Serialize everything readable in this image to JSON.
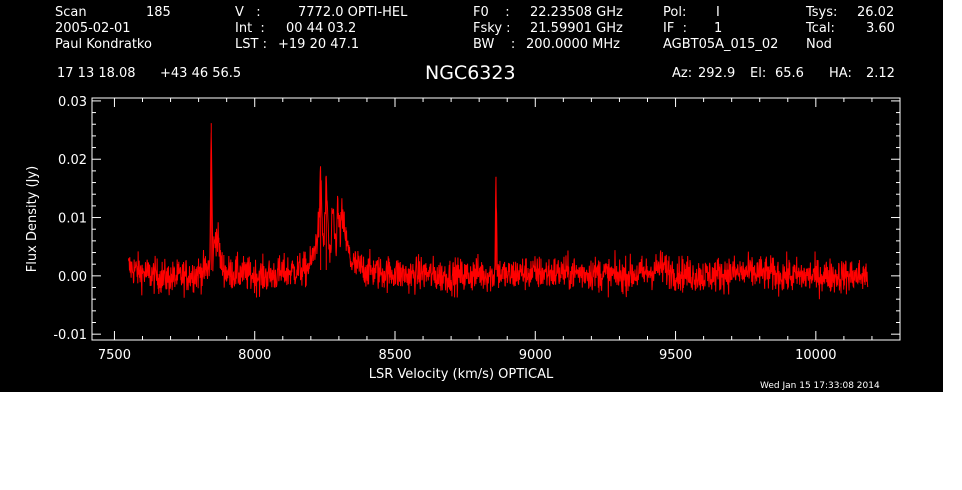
{
  "header": {
    "scan_label": "Scan",
    "scan_value": "185",
    "date": "2005-02-01",
    "observer": "Paul Kondratko",
    "v_label": "V   :",
    "v_value": "7772.0 OPTI-HEL",
    "int_label": "Int  :",
    "int_value": "00 44 03.2",
    "lst_label": "LST :",
    "lst_value": "+19 20 47.1",
    "f0_label": "F0    :",
    "f0_value": "22.23508 GHz",
    "fsky_label": "Fsky :",
    "fsky_value": "21.59901 GHz",
    "bw_label": "BW    :",
    "bw_value": "200.0000 MHz",
    "pol_label": "Pol:",
    "pol_value": "I",
    "if_label": "IF  :",
    "if_value": "1",
    "project": "AGBT05A_015_02",
    "tsys_label": "Tsys:",
    "tsys_value": "26.02",
    "tcal_label": "Tcal:",
    "tcal_value": "3.60",
    "mode": "Nod",
    "ra": "17 13 18.08",
    "dec": "+43 46 56.5",
    "object": "NGC6323",
    "az_label": "Az:",
    "az_value": "292.9",
    "el_label": "El:",
    "el_value": "65.6",
    "ha_label": "HA:",
    "ha_value": "2.12",
    "timestamp": "Wed Jan 15 17:33:08 2014"
  },
  "colors": {
    "background": "#000000",
    "foreground": "#ffffff",
    "spectrum": "#ff0000"
  },
  "chart_data": {
    "type": "line",
    "title": "NGC6323",
    "xlabel": "LSR Velocity (km/s) OPTICAL",
    "ylabel": "Flux Density (Jy)",
    "xlim": [
      7420,
      10300
    ],
    "ylim": [
      -0.011,
      0.0305
    ],
    "xticks": [
      7500,
      8000,
      8500,
      9000,
      9500,
      10000
    ],
    "yticks": [
      -0.01,
      0.0,
      0.01,
      0.02,
      0.03
    ],
    "ytick_labels": [
      "-0.01",
      "0.00",
      "0.01",
      "0.02",
      "0.03"
    ],
    "grid": false,
    "noise_rms": 0.0015,
    "series": [
      {
        "x": [
          7550,
          7600,
          7650,
          7700,
          7750,
          7800,
          7830,
          7840,
          7845,
          7850,
          7860,
          7870,
          7880,
          7900,
          7950,
          8000,
          8050,
          8100,
          8150,
          8180,
          8200,
          8210,
          8220,
          8230,
          8235,
          8240,
          8245,
          8250,
          8255,
          8260,
          8265,
          8270,
          8275,
          8280,
          8285,
          8290,
          8295,
          8300,
          8305,
          8310,
          8315,
          8320,
          8325,
          8330,
          8335,
          8340,
          8350,
          8370,
          8400,
          8450,
          8500,
          8550,
          8600,
          8650,
          8700,
          8750,
          8800,
          8850,
          8855,
          8860,
          8865,
          8870,
          8900,
          8950,
          9000,
          9100,
          9200,
          9300,
          9400,
          9450,
          9500,
          9600,
          9700,
          9800,
          9900,
          10000,
          10100,
          10185
        ],
        "y": [
          0.0015,
          0.0005,
          0.0,
          -0.0005,
          0.0,
          0.0005,
          0.001,
          0.002,
          0.0262,
          0.003,
          0.007,
          0.006,
          0.002,
          0.0005,
          0.0005,
          0.0,
          0.0,
          0.0005,
          0.001,
          0.001,
          0.002,
          0.004,
          0.006,
          0.009,
          0.018,
          0.01,
          0.005,
          0.009,
          0.016,
          0.011,
          0.004,
          0.003,
          0.008,
          0.011,
          0.007,
          0.005,
          0.012,
          0.009,
          0.007,
          0.011,
          0.008,
          0.009,
          0.006,
          0.005,
          0.004,
          0.003,
          0.002,
          0.0015,
          0.001,
          0.0005,
          0.0005,
          0.0,
          0.0005,
          0.0,
          0.0,
          0.0,
          0.0005,
          0.0,
          0.0,
          0.017,
          0.0,
          0.0005,
          0.0,
          0.0005,
          0.0005,
          0.0005,
          0.0005,
          0.0,
          0.0005,
          0.0015,
          0.0005,
          0.0,
          0.0005,
          0.0005,
          0.0,
          0.0,
          0.0,
          0.0
        ]
      }
    ]
  }
}
